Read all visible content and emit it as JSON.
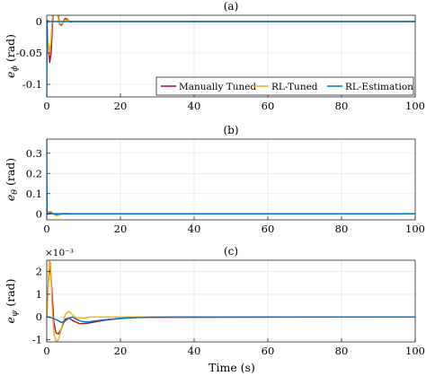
{
  "figure": {
    "xlabel": "Time (s)"
  },
  "chart_data": [
    {
      "type": "line",
      "panel": "(a)",
      "title": "(a)",
      "ylabel_symbol": "e",
      "ylabel_sub": "ϕ",
      "ylabel_unit": " (rad)",
      "exponent": "",
      "xlim": [
        0,
        100
      ],
      "ylim": [
        -0.12,
        0.01
      ],
      "xticks": [
        0,
        20,
        40,
        60,
        80,
        100
      ],
      "xticklabels": [
        "0",
        "20",
        "40",
        "60",
        "80",
        "100"
      ],
      "yticks": [
        0,
        -0.05,
        -0.1
      ],
      "yticklabels": [
        "0",
        "-0.05",
        "-0.1"
      ],
      "grid": true,
      "legend": {
        "placement": "bottom-right",
        "columns": 3
      },
      "series": [
        {
          "name": "Manually Tuned",
          "color": "#a2142f",
          "x": [
            0,
            0.3,
            0.8,
            1.2,
            1.6,
            2.0,
            2.5,
            3.0,
            3.5,
            4.0,
            4.5,
            5.0,
            5.5,
            6.0,
            6.5,
            7.0,
            8.0,
            100
          ],
          "y": [
            0,
            -0.03,
            -0.065,
            -0.05,
            0,
            0.03,
            0.032,
            0.015,
            -0.004,
            -0.006,
            0.0,
            0.005,
            0.004,
            0.001,
            -0.001,
            0.0,
            0.0,
            0.0
          ]
        },
        {
          "name": "RL-Tuned",
          "color": "#edb120",
          "x": [
            0,
            0.3,
            0.7,
            1.1,
            1.5,
            1.9,
            2.4,
            2.9,
            3.4,
            4.0,
            4.6,
            5.2,
            6.0,
            7.0,
            100
          ],
          "y": [
            0,
            -0.025,
            -0.05,
            -0.035,
            0.005,
            0.022,
            0.026,
            0.012,
            -0.003,
            -0.004,
            0.001,
            0.003,
            0.001,
            0.0,
            0.0
          ]
        },
        {
          "name": "RL-Estimation",
          "color": "#0072bd",
          "x": [
            0,
            0.05,
            0.12,
            0.2,
            0.35,
            0.6,
            1.0,
            100
          ],
          "y": [
            -0.12,
            -0.05,
            -0.005,
            0.002,
            0.0,
            0.0,
            0.0,
            0.0
          ]
        }
      ]
    },
    {
      "type": "line",
      "panel": "(b)",
      "title": "(b)",
      "ylabel_symbol": "e",
      "ylabel_sub": "θ",
      "ylabel_unit": " (rad)",
      "exponent": "",
      "xlim": [
        0,
        100
      ],
      "ylim": [
        -0.03,
        0.37
      ],
      "xticks": [
        0,
        20,
        40,
        60,
        80,
        100
      ],
      "xticklabels": [
        "0",
        "20",
        "40",
        "60",
        "80",
        "100"
      ],
      "yticks": [
        0.3,
        0.2,
        0.1,
        0
      ],
      "yticklabels": [
        "0.3",
        "0.2",
        "0.1",
        "0"
      ],
      "grid": true,
      "series": [
        {
          "name": "Manually Tuned",
          "color": "#a2142f",
          "x": [
            0,
            0.4,
            0.8,
            1.2,
            1.7,
            2.3,
            3.0,
            3.8,
            4.6,
            5.5,
            7.0,
            100
          ],
          "y": [
            0,
            0.004,
            0.008,
            0.007,
            0.0,
            -0.006,
            -0.007,
            -0.003,
            0.001,
            0.001,
            0.0,
            0.0
          ]
        },
        {
          "name": "RL-Tuned",
          "color": "#edb120",
          "x": [
            0,
            0.4,
            0.8,
            1.3,
            1.8,
            2.4,
            3.0,
            3.7,
            4.5,
            6.0,
            100
          ],
          "y": [
            0,
            0.006,
            0.012,
            0.01,
            0.0,
            -0.008,
            -0.009,
            -0.003,
            0.001,
            0.0,
            0.0
          ]
        },
        {
          "name": "RL-Estimation",
          "color": "#0072bd",
          "x": [
            0,
            0.04,
            0.1,
            0.2,
            0.35,
            0.6,
            1.0,
            100
          ],
          "y": [
            0.37,
            0.15,
            0.02,
            -0.003,
            0.0,
            0.0,
            0.0,
            0.0
          ]
        }
      ]
    },
    {
      "type": "line",
      "panel": "(c)",
      "title": "(c)",
      "ylabel_symbol": "e",
      "ylabel_sub": "ψ",
      "ylabel_unit": " (rad)",
      "exponent": "×10⁻³",
      "xlim": [
        0,
        100
      ],
      "ylim": [
        -1.1,
        2.5
      ],
      "xticks": [
        0,
        20,
        40,
        60,
        80,
        100
      ],
      "xticklabels": [
        "0",
        "20",
        "40",
        "60",
        "80",
        "100"
      ],
      "yticks": [
        2,
        1,
        0,
        -1
      ],
      "yticklabels": [
        "2",
        "1",
        "0",
        "-1"
      ],
      "grid": true,
      "series": [
        {
          "name": "Manually Tuned",
          "color": "#a2142f",
          "x": [
            0,
            0.4,
            0.9,
            1.4,
            1.9,
            2.5,
            3.2,
            4.0,
            5.0,
            6.0,
            7.5,
            9.0,
            11,
            13,
            16,
            20,
            25,
            100
          ],
          "y": [
            0,
            1.4,
            2.4,
            1.2,
            -0.2,
            -0.7,
            -0.75,
            -0.5,
            -0.1,
            -0.05,
            -0.2,
            -0.3,
            -0.28,
            -0.22,
            -0.14,
            -0.07,
            -0.02,
            0.0
          ]
        },
        {
          "name": "RL-Tuned",
          "color": "#edb120",
          "x": [
            0,
            0.3,
            0.7,
            1.1,
            1.5,
            2.0,
            2.6,
            3.2,
            4.0,
            5.0,
            6.0,
            7.0,
            8.0,
            10,
            12,
            15,
            100
          ],
          "y": [
            0,
            1.0,
            2.5,
            2.0,
            0.3,
            -0.8,
            -1.1,
            -1.0,
            -0.5,
            0.1,
            0.25,
            0.1,
            -0.05,
            -0.05,
            0.0,
            0.0,
            0.0
          ]
        },
        {
          "name": "RL-Estimation",
          "color": "#0072bd",
          "x": [
            0,
            1.0,
            2.0,
            3.0,
            4.0,
            5.0,
            6.0,
            7.0,
            8.0,
            9.5,
            11,
            13,
            16,
            20,
            24,
            28,
            35,
            100
          ],
          "y": [
            0,
            -0.02,
            -0.08,
            -0.15,
            -0.25,
            -0.18,
            -0.05,
            0.0,
            -0.1,
            -0.2,
            -0.22,
            -0.18,
            -0.12,
            -0.06,
            -0.03,
            -0.01,
            0.0,
            0.0
          ]
        }
      ]
    }
  ]
}
